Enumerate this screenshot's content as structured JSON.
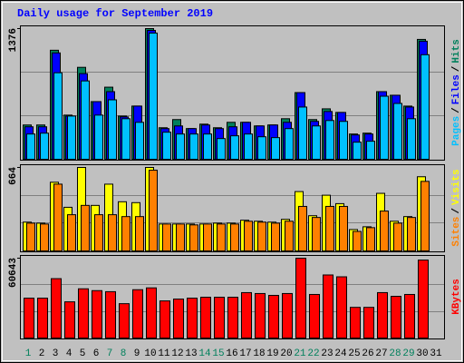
{
  "chart_data": [
    {
      "type": "bar",
      "title": "Daily usage for September 2019",
      "legend_separator": "/",
      "ylim": [
        0,
        1376
      ],
      "yticks": [
        1376
      ],
      "series": [
        {
          "name": "Hits",
          "color": "#00805c",
          "values": [
            361,
            361,
            1148,
            465,
            968,
            607,
            759,
            455,
            560,
            1376,
            332,
            418,
            323,
            370,
            332,
            389,
            389,
            351,
            361,
            427,
            702,
            418,
            531,
            493,
            266,
            275,
            712,
            674,
            560,
            1262,
            null
          ]
        },
        {
          "name": "Files",
          "color": "#0000ff",
          "values": [
            342,
            342,
            1120,
            455,
            902,
            607,
            712,
            446,
            560,
            1357,
            323,
            351,
            323,
            361,
            323,
            342,
            389,
            351,
            361,
            389,
            702,
            399,
            503,
            493,
            256,
            266,
            712,
            674,
            550,
            1243,
            null
          ]
        },
        {
          "name": "Pages",
          "color": "#00c0ff",
          "values": [
            266,
            275,
            911,
            455,
            825,
            465,
            626,
            427,
            389,
            1329,
            285,
            266,
            266,
            266,
            218,
            247,
            266,
            237,
            228,
            323,
            550,
            351,
            408,
            399,
            180,
            190,
            664,
            588,
            427,
            1101,
            null
          ]
        }
      ]
    },
    {
      "type": "bar",
      "legend_separator": "/",
      "ylim": [
        0,
        664
      ],
      "yticks": [
        664
      ],
      "series": [
        {
          "name": "Visits",
          "color": "#ffff00",
          "values": [
            229,
            221,
            546,
            347,
            664,
            362,
            531,
            391,
            384,
            664,
            214,
            214,
            214,
            214,
            221,
            221,
            244,
            236,
            229,
            251,
            472,
            280,
            443,
            376,
            170,
            192,
            458,
            236,
            273,
            590,
            null
          ]
        },
        {
          "name": "Sites",
          "color": "#ff8000",
          "values": [
            221,
            214,
            531,
            288,
            362,
            288,
            288,
            273,
            273,
            642,
            214,
            214,
            207,
            214,
            214,
            214,
            236,
            229,
            221,
            236,
            354,
            266,
            354,
            354,
            155,
            185,
            317,
            221,
            266,
            553,
            null
          ]
        }
      ]
    },
    {
      "type": "bar",
      "ylim": [
        0,
        60643
      ],
      "yticks": [
        60643
      ],
      "categories": [
        "1",
        "2",
        "3",
        "4",
        "5",
        "6",
        "7",
        "8",
        "9",
        "10",
        "11",
        "12",
        "13",
        "14",
        "15",
        "16",
        "17",
        "18",
        "19",
        "20",
        "21",
        "22",
        "23",
        "24",
        "25",
        "26",
        "27",
        "28",
        "29",
        "30",
        "31"
      ],
      "category_colors": [
        "#00805c",
        "#000000",
        "#000000",
        "#000000",
        "#000000",
        "#000000",
        "#00805c",
        "#00805c",
        "#000000",
        "#000000",
        "#000000",
        "#000000",
        "#000000",
        "#00805c",
        "#00805c",
        "#000000",
        "#000000",
        "#000000",
        "#000000",
        "#000000",
        "#00805c",
        "#00805c",
        "#000000",
        "#000000",
        "#000000",
        "#000000",
        "#000000",
        "#00805c",
        "#00805c",
        "#000000",
        "#000000"
      ],
      "series": [
        {
          "name": "KBytes",
          "color": "#ff0000",
          "values": [
            30300,
            30300,
            45100,
            27500,
            37400,
            36000,
            35200,
            26100,
            36700,
            38100,
            28200,
            29600,
            30300,
            31000,
            31000,
            31000,
            34500,
            33800,
            32400,
            33800,
            60643,
            33100,
            47900,
            46500,
            23300,
            23300,
            34500,
            31700,
            33100,
            59200,
            null
          ]
        }
      ]
    }
  ]
}
